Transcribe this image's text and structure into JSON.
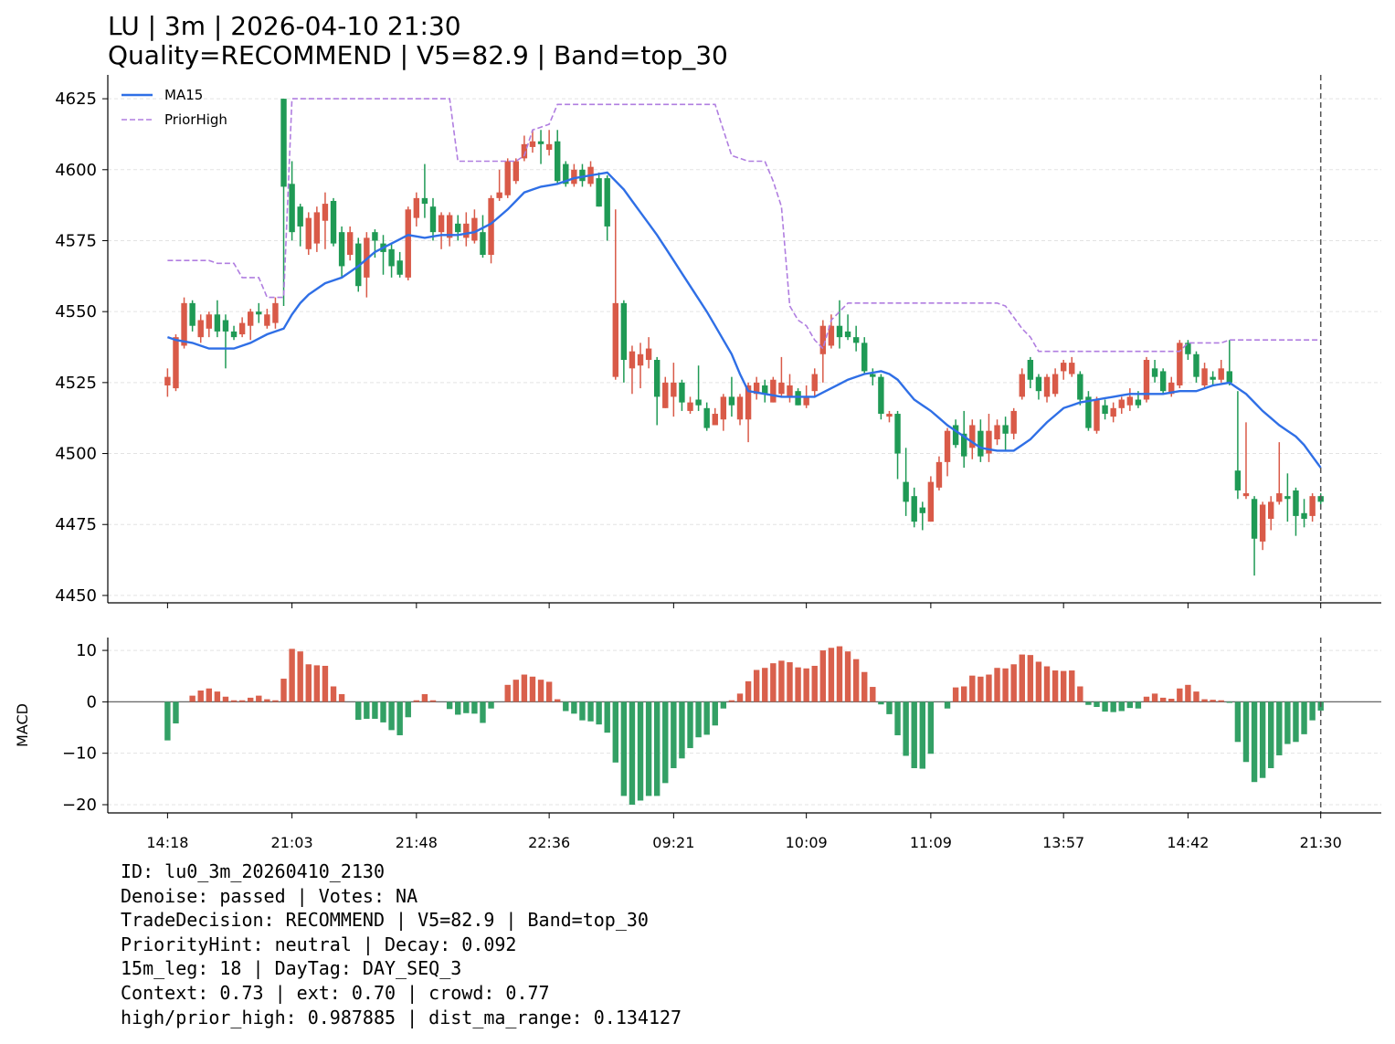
{
  "chart_data": [
    {
      "type": "candlestick",
      "title": "LU | 3m | 2026-04-10 21:30",
      "subtitle": "Quality=RECOMMEND | V5=82.9 | Band=top_30",
      "open": [
        4524,
        4523,
        4538,
        4553,
        4541,
        4544,
        4549,
        4547,
        4543,
        4542,
        4545,
        4550,
        4545,
        4546,
        4625,
        4595,
        4587,
        4572,
        4574,
        4582,
        4589,
        4578,
        4570,
        4574,
        4562,
        4578,
        4574,
        4572,
        4568,
        4562,
        4583,
        4590,
        4587,
        4578,
        4576,
        4581,
        4576,
        4575,
        4578,
        4570,
        4590,
        4591,
        4596,
        4604,
        4608,
        4610,
        4607,
        4610,
        4602,
        4595,
        4600,
        4595,
        4597,
        4597,
        4527,
        4553,
        4530,
        4531,
        4533,
        4533,
        4516,
        4520,
        4525,
        4515,
        4519,
        4516,
        4510,
        4512,
        4520,
        4512,
        4512,
        4521,
        4524,
        4518,
        4521,
        4520,
        4522,
        4517,
        4522,
        4535,
        4538,
        4545,
        4543,
        4541,
        4539,
        4528,
        4527,
        4513,
        4514,
        4490,
        4485,
        4481,
        4476,
        4488,
        4497,
        4510,
        4507,
        4502,
        4508,
        4500,
        4505,
        4510,
        4507,
        4520,
        4533,
        4527,
        4520,
        4521,
        4529,
        4528,
        4528,
        4520,
        4508,
        4517,
        4513,
        4516,
        4517,
        4519,
        4519,
        4530,
        4529,
        4521,
        4524,
        4539,
        4535,
        4524,
        4527,
        4526,
        4529,
        4494,
        4485,
        4484,
        4469,
        4477,
        4483,
        4485,
        4487,
        4479,
        4478,
        4485
      ],
      "high": [
        4530,
        4542,
        4555,
        4554,
        4549,
        4550,
        4554,
        4549,
        4545,
        4548,
        4551,
        4553,
        4551,
        4555,
        4625,
        4603,
        4588,
        4585,
        4587,
        4592,
        4590,
        4580,
        4580,
        4576,
        4578,
        4579,
        4577,
        4574,
        4571,
        4587,
        4592,
        4602,
        4590,
        4585,
        4585,
        4584,
        4585,
        4586,
        4584,
        4591,
        4600,
        4604,
        4604,
        4612,
        4614,
        4614,
        4614,
        4614,
        4603,
        4602,
        4602,
        4603,
        4599,
        4598,
        4586,
        4554,
        4538,
        4539,
        4541,
        4534,
        4527,
        4532,
        4526,
        4520,
        4531,
        4518,
        4516,
        4521,
        4527,
        4521,
        4525,
        4527,
        4526,
        4527,
        4534,
        4528,
        4523,
        4524,
        4530,
        4547,
        4549,
        4554,
        4549,
        4545,
        4541,
        4530,
        4528,
        4515,
        4515,
        4502,
        4488,
        4483,
        4492,
        4499,
        4509,
        4512,
        4515,
        4512,
        4512,
        4514,
        4512,
        4513,
        4516,
        4530,
        4534,
        4528,
        4528,
        4530,
        4533,
        4534,
        4529,
        4522,
        4520,
        4519,
        4518,
        4520,
        4523,
        4522,
        4534,
        4533,
        4530,
        4527,
        4540,
        4540,
        4536,
        4532,
        4529,
        4533,
        4540,
        4522,
        4511,
        4485,
        4483,
        4485,
        4504,
        4493,
        4488,
        4484,
        4486,
        4486
      ],
      "low": [
        4520,
        4522,
        4537,
        4543,
        4539,
        4541,
        4541,
        4530,
        4540,
        4541,
        4540,
        4546,
        4544,
        4544,
        4552,
        4575,
        4573,
        4570,
        4571,
        4572,
        4573,
        4562,
        4568,
        4557,
        4555,
        4569,
        4563,
        4562,
        4562,
        4561,
        4580,
        4583,
        4575,
        4572,
        4573,
        4575,
        4573,
        4574,
        4569,
        4567,
        4589,
        4590,
        4595,
        4603,
        4606,
        4602,
        4605,
        4595,
        4594,
        4594,
        4594,
        4594,
        4587,
        4575,
        4526,
        4525,
        4521,
        4523,
        4530,
        4510,
        4516,
        4513,
        4515,
        4514,
        4515,
        4508,
        4510,
        4508,
        4513,
        4510,
        4504,
        4519,
        4518,
        4518,
        4520,
        4518,
        4517,
        4516,
        4520,
        4525,
        4537,
        4537,
        4540,
        4536,
        4528,
        4524,
        4512,
        4511,
        4491,
        4478,
        4474,
        4473,
        4476,
        4487,
        4492,
        4502,
        4495,
        4498,
        4497,
        4497,
        4503,
        4501,
        4505,
        4519,
        4523,
        4519,
        4518,
        4520,
        4526,
        4527,
        4517,
        4508,
        4507,
        4512,
        4511,
        4514,
        4515,
        4516,
        4518,
        4525,
        4521,
        4520,
        4523,
        4533,
        4525,
        4523,
        4524,
        4525,
        4524,
        4484,
        4484,
        4457,
        4466,
        4473,
        4482,
        4476,
        4471,
        4474,
        4476,
        4481
      ],
      "close": [
        4527,
        4541,
        4553,
        4545,
        4547,
        4549,
        4543,
        4543,
        4541,
        4546,
        4550,
        4549,
        4549,
        4553,
        4594,
        4578,
        4580,
        4583,
        4585,
        4588,
        4574,
        4566,
        4578,
        4559,
        4576,
        4575,
        4571,
        4566,
        4563,
        4586,
        4590,
        4588,
        4578,
        4584,
        4584,
        4578,
        4581,
        4583,
        4570,
        4590,
        4592,
        4603,
        4603,
        4609,
        4610,
        4609,
        4609,
        4596,
        4595,
        4600,
        4596,
        4601,
        4587,
        4580,
        4553,
        4533,
        4536,
        4535,
        4537,
        4520,
        4525,
        4525,
        4518,
        4518,
        4517,
        4509,
        4514,
        4520,
        4517,
        4520,
        4524,
        4525,
        4521,
        4526,
        4525,
        4524,
        4517,
        4520,
        4528,
        4545,
        4545,
        4541,
        4541,
        4539,
        4529,
        4527,
        4514,
        4514,
        4500,
        4483,
        4476,
        4479,
        4490,
        4497,
        4508,
        4503,
        4499,
        4510,
        4499,
        4508,
        4510,
        4507,
        4515,
        4528,
        4526,
        4522,
        4527,
        4528,
        4532,
        4532,
        4519,
        4509,
        4519,
        4514,
        4516,
        4519,
        4520,
        4517,
        4533,
        4527,
        4522,
        4525,
        4539,
        4535,
        4527,
        4530,
        4526,
        4530,
        4525,
        4487,
        4486,
        4470,
        4482,
        4483,
        4486,
        4484,
        4478,
        4477,
        4485,
        4483
      ],
      "up_color": "#d95a48",
      "down_color": "#1f9a55",
      "series": [
        {
          "name": "MA15",
          "color": "#2f6fe6",
          "linestyle": "solid",
          "values": [
            4541,
            4540,
            4539.5,
            4539,
            4538,
            4537,
            4537,
            4537,
            4537,
            4538,
            4539,
            4540.5,
            4542,
            4543,
            4544,
            4549,
            4553,
            4556,
            4558,
            4560,
            4561,
            4562,
            4564,
            4566,
            4568.5,
            4571,
            4572.5,
            4574,
            4575.5,
            4577,
            4576.5,
            4576,
            4576.5,
            4577,
            4577,
            4577,
            4577.5,
            4578,
            4579.5,
            4581,
            4583.5,
            4586,
            4589,
            4592,
            4593,
            4594,
            4594.5,
            4595,
            4596,
            4597,
            4597.5,
            4598,
            4598.5,
            4599,
            4596,
            4593,
            4589,
            4585,
            4581,
            4577,
            4572.5,
            4568,
            4563.5,
            4559,
            4554.5,
            4550,
            4545,
            4540,
            4535,
            4528,
            4522,
            4521.5,
            4521,
            4520.5,
            4520,
            4520,
            4520,
            4520,
            4520,
            4521.5,
            4523,
            4524.5,
            4526,
            4527,
            4528,
            4528.5,
            4529,
            4528,
            4526,
            4522.5,
            4519,
            4517,
            4515,
            4512.5,
            4510,
            4508,
            4506,
            4504,
            4502,
            4501.5,
            4501,
            4501,
            4501,
            4503,
            4505,
            4508,
            4511,
            4513.5,
            4516,
            4517,
            4518,
            4518.5,
            4519,
            4519.5,
            4520,
            4520.5,
            4521,
            4521,
            4521,
            4521,
            4521,
            4521.5,
            4522,
            4522,
            4522,
            4523,
            4524,
            4524.5,
            4525,
            4523,
            4521,
            4518,
            4515,
            4512.5,
            4510,
            4508,
            4506,
            4503,
            4499,
            4495
          ]
        },
        {
          "name": "PriorHigh",
          "color": "#b07ee0",
          "linestyle": "dashed",
          "values": [
            4568,
            4568,
            4568,
            4568,
            4568,
            4568,
            4567,
            4567,
            4567,
            4562,
            4562,
            4562,
            4555,
            4555,
            4555,
            4625,
            4625,
            4625,
            4625,
            4625,
            4625,
            4625,
            4625,
            4625,
            4625,
            4625,
            4625,
            4625,
            4625,
            4625,
            4625,
            4625,
            4625,
            4625,
            4625,
            4603,
            4603,
            4603,
            4603,
            4603,
            4603,
            4603,
            4603,
            4605,
            4614,
            4615,
            4616,
            4623,
            4623,
            4623,
            4623,
            4623,
            4623,
            4623,
            4623,
            4623,
            4623,
            4623,
            4623,
            4623,
            4623,
            4623,
            4623,
            4623,
            4623,
            4623,
            4623,
            4614,
            4605,
            4604,
            4603,
            4603,
            4603,
            4596,
            4587,
            4552,
            4547,
            4545,
            4540,
            4537,
            4547,
            4550,
            4553,
            4553,
            4553,
            4553,
            4553,
            4553,
            4553,
            4553,
            4553,
            4553,
            4553,
            4553,
            4553,
            4553,
            4553,
            4553,
            4553,
            4553,
            4553,
            4552,
            4548,
            4544,
            4541,
            4536,
            4536,
            4536,
            4536,
            4536,
            4536,
            4536,
            4536,
            4536,
            4536,
            4536,
            4536,
            4536,
            4536,
            4536,
            4536,
            4536,
            4536,
            4539,
            4539,
            4539,
            4539,
            4539,
            4540,
            4540,
            4540,
            4540,
            4540,
            4540,
            4540,
            4540,
            4540,
            4540,
            4540,
            4540
          ]
        }
      ],
      "xlim": [
        -7.2,
        146.3
      ],
      "xticks": [
        0,
        15,
        30,
        46,
        61,
        77,
        92,
        108,
        123,
        139
      ],
      "ylim": [
        4447.4,
        4633.4
      ],
      "yticks": [
        4450,
        4475,
        4500,
        4525,
        4550,
        4575,
        4600,
        4625
      ],
      "grid": true,
      "legend": "upper left",
      "vline_x": 139
    },
    {
      "type": "bar",
      "ylabel": "MACD",
      "values": [
        -7.5,
        -4.2,
        0,
        1.2,
        2.2,
        2.6,
        2.0,
        1.0,
        0.3,
        0.3,
        0.8,
        1.2,
        0.5,
        0.3,
        4.5,
        10.3,
        9.8,
        7.3,
        7.1,
        7.0,
        3.0,
        1.5,
        0,
        -3.5,
        -3.3,
        -3.3,
        -4.0,
        -5.5,
        -6.5,
        -3.0,
        0.3,
        1.5,
        0.3,
        0,
        -1.4,
        -2.5,
        -2.2,
        -2.3,
        -4.1,
        -1.3,
        0,
        3.3,
        4.3,
        5.3,
        4.9,
        4.3,
        3.9,
        0.5,
        -1.8,
        -2.3,
        -3.6,
        -3.8,
        -4.4,
        -6.0,
        -11.8,
        -18.3,
        -20.0,
        -19.2,
        -18.3,
        -18.3,
        -15.8,
        -12.9,
        -11.0,
        -9.0,
        -6.9,
        -6.4,
        -4.6,
        -1.3,
        0.3,
        1.6,
        4.0,
        6.2,
        6.6,
        7.5,
        8.0,
        7.7,
        6.7,
        6.5,
        7.0,
        10.0,
        10.5,
        10.8,
        9.8,
        8.3,
        5.8,
        2.9,
        -0.5,
        -2.4,
        -6.5,
        -10.5,
        -12.9,
        -13.0,
        -10.1,
        0,
        -1.3,
        2.8,
        3.0,
        5.1,
        4.9,
        5.3,
        6.6,
        6.5,
        7.3,
        9.2,
        9.1,
        7.8,
        6.9,
        6.1,
        6.0,
        6.1,
        3.0,
        -0.6,
        -1.0,
        -1.9,
        -2.0,
        -1.8,
        -1.2,
        -1.3,
        1.0,
        1.6,
        0.8,
        0.6,
        2.6,
        3.3,
        2.0,
        0.5,
        0.4,
        0.3,
        -0.2,
        -7.8,
        -11.7,
        -15.6,
        -14.8,
        -12.9,
        -10.4,
        -8.2,
        -7.8,
        -6.3,
        -3.6,
        -1.7
      ],
      "pos_color": "#d9604c",
      "neg_color": "#33a065",
      "xlim": [
        -7.2,
        146.3
      ],
      "xticks": [
        {
          "value": 0,
          "label": "14:18"
        },
        {
          "value": 15,
          "label": "21:03"
        },
        {
          "value": 30,
          "label": "21:48"
        },
        {
          "value": 46,
          "label": "22:36"
        },
        {
          "value": 61,
          "label": "09:21"
        },
        {
          "value": 77,
          "label": "10:09"
        },
        {
          "value": 92,
          "label": "11:09"
        },
        {
          "value": 108,
          "label": "13:57"
        },
        {
          "value": 123,
          "label": "14:42"
        },
        {
          "value": 139,
          "label": "21:30"
        }
      ],
      "ylim": [
        -21.6,
        12.5
      ],
      "yticks": [
        {
          "value": -20,
          "label": "−20"
        },
        {
          "value": -10,
          "label": "−10"
        },
        0,
        10
      ],
      "grid": true,
      "vline_x": 139
    }
  ],
  "info": {
    "lines": [
      "ID: lu0_3m_20260410_2130",
      "Denoise: passed | Votes: NA",
      "TradeDecision: RECOMMEND | V5=82.9 | Band=top_30",
      "PriorityHint: neutral | Decay: 0.092",
      "15m_leg: 18 | DayTag: DAY_SEQ_3",
      "Context: 0.73 | ext: 0.70 | crowd: 0.77",
      "high/prior_high: 0.987885 | dist_ma_range: 0.134127"
    ]
  }
}
